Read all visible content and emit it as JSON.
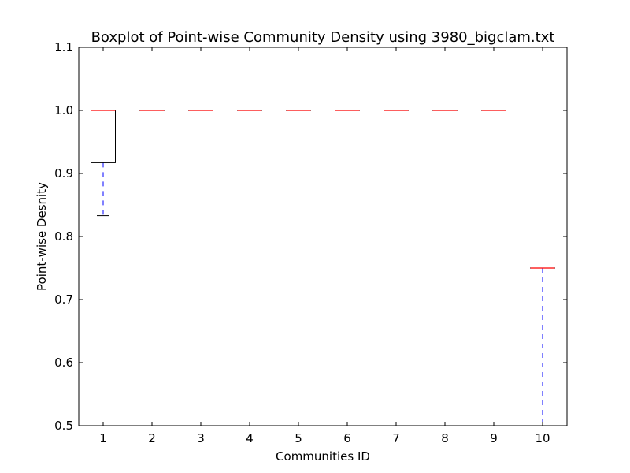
{
  "chart_data": {
    "type": "boxplot",
    "title": "Boxplot of Point-wise Community Density using 3980_bigclam.txt",
    "xlabel": "Communities ID",
    "ylabel": "Point-wise Desnity",
    "ylim": [
      0.5,
      1.1
    ],
    "xlim": [
      0.5,
      10.5
    ],
    "yticks": [
      "0.5",
      "0.6",
      "0.7",
      "0.8",
      "0.9",
      "1.0",
      "1.1"
    ],
    "categories": [
      "1",
      "2",
      "3",
      "4",
      "5",
      "6",
      "7",
      "8",
      "9",
      "10"
    ],
    "boxes": [
      {
        "id": "1",
        "whisker_low": 0.833,
        "q1": 0.917,
        "median": 1.0,
        "q3": 1.0,
        "whisker_high": 1.0
      },
      {
        "id": "2",
        "whisker_low": 1.0,
        "q1": 1.0,
        "median": 1.0,
        "q3": 1.0,
        "whisker_high": 1.0
      },
      {
        "id": "3",
        "whisker_low": 1.0,
        "q1": 1.0,
        "median": 1.0,
        "q3": 1.0,
        "whisker_high": 1.0
      },
      {
        "id": "4",
        "whisker_low": 1.0,
        "q1": 1.0,
        "median": 1.0,
        "q3": 1.0,
        "whisker_high": 1.0
      },
      {
        "id": "5",
        "whisker_low": 1.0,
        "q1": 1.0,
        "median": 1.0,
        "q3": 1.0,
        "whisker_high": 1.0
      },
      {
        "id": "6",
        "whisker_low": 1.0,
        "q1": 1.0,
        "median": 1.0,
        "q3": 1.0,
        "whisker_high": 1.0
      },
      {
        "id": "7",
        "whisker_low": 1.0,
        "q1": 1.0,
        "median": 1.0,
        "q3": 1.0,
        "whisker_high": 1.0
      },
      {
        "id": "8",
        "whisker_low": 1.0,
        "q1": 1.0,
        "median": 1.0,
        "q3": 1.0,
        "whisker_high": 1.0
      },
      {
        "id": "9",
        "whisker_low": 1.0,
        "q1": 1.0,
        "median": 1.0,
        "q3": 1.0,
        "whisker_high": 1.0
      },
      {
        "id": "10",
        "whisker_low": 0.5,
        "q1": 0.75,
        "median": 0.75,
        "q3": 0.75,
        "whisker_high": 0.75
      }
    ],
    "grid": false,
    "colors": {
      "box": "#000000",
      "median": "#ff0000",
      "whisker": "#0000ff",
      "cap": "#000000"
    }
  }
}
